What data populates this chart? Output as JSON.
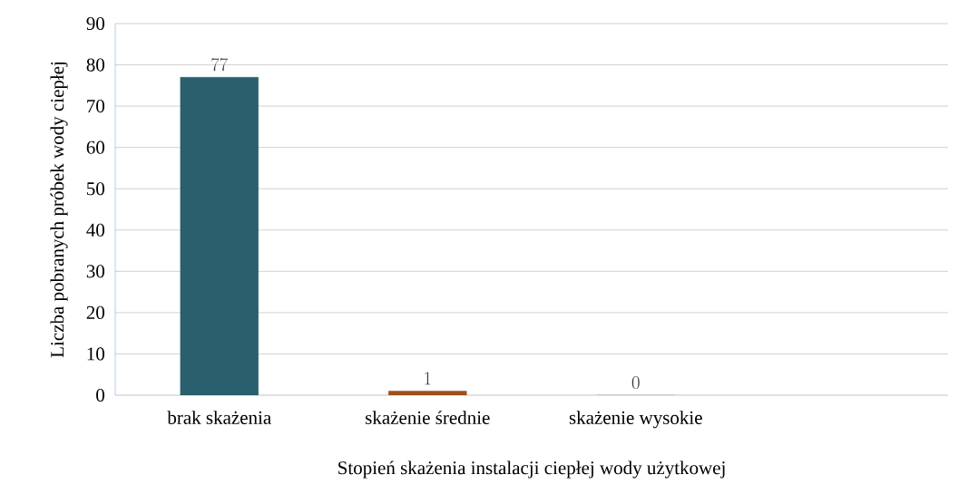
{
  "chart_data": {
    "type": "bar",
    "xlabel": "Stopień skażenia instalacji ciepłej wody użytkowej",
    "ylabel": "Liczba pobranych próbek wody ciepłej",
    "categories": [
      "brak skażenia",
      "skażenie średnie",
      "skażenie wysokie",
      null
    ],
    "values": [
      77,
      1,
      0,
      null
    ],
    "colors": [
      "#2a5f6e",
      "#a0521a",
      "#7f7f7f",
      "#7f7f7f"
    ],
    "ylim": [
      0,
      90
    ],
    "yticks": [
      0,
      10,
      20,
      30,
      40,
      50,
      60,
      70,
      80,
      90
    ],
    "grid": "y",
    "data_labels": true
  }
}
